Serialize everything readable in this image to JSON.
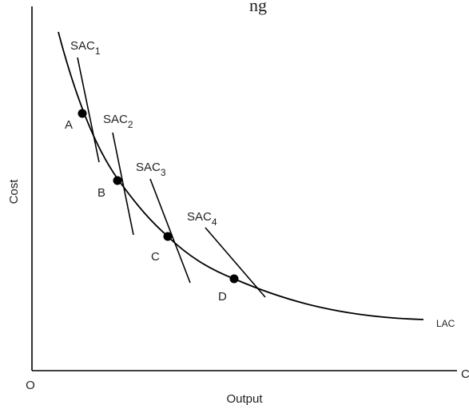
{
  "header_fragment": "ng",
  "chart_data": {
    "type": "line",
    "xlabel": "Output",
    "ylabel": "Cost",
    "origin_label": "O",
    "x_axis_end_label": "C",
    "lac_label": "LAC",
    "sac_curves": [
      {
        "name": "SAC",
        "sub": "1"
      },
      {
        "name": "SAC",
        "sub": "2"
      },
      {
        "name": "SAC",
        "sub": "3"
      },
      {
        "name": "SAC",
        "sub": "4"
      }
    ],
    "tangency_points": [
      "A",
      "B",
      "C",
      "D"
    ]
  }
}
